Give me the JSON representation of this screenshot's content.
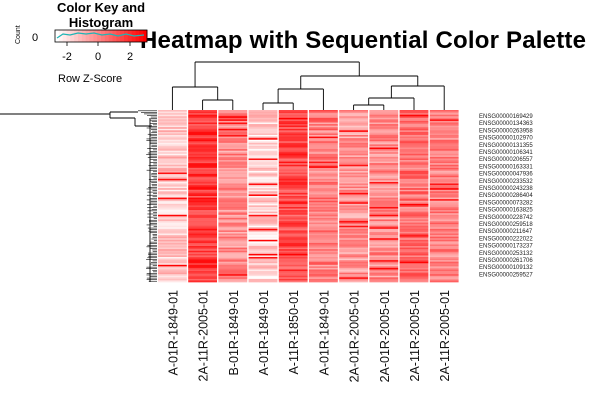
{
  "chart_data": {
    "type": "heatmap",
    "title": "Heatmap with Sequential Color Palette",
    "color_low": "#ffffff",
    "color_high": "#ff0000",
    "color_key": {
      "title": "Color Key and Histogram",
      "xlabel": "Row Z-Score",
      "ylabel": "Count",
      "y_tick": "0",
      "x_ticks": [
        "-2",
        "0",
        "2"
      ],
      "range": [
        -3,
        3
      ]
    },
    "columns": [
      "A-01R-1849-01",
      "2A-11R-2005-01",
      "B-01R-1849-01",
      "A-01R-1849-01",
      "A-11R-1850-01",
      "A-01R-1849-01",
      "2A-01R-2005-01",
      "2A-01R-2005-01",
      "2A-11R-2005-01",
      "2A-11R-2005-01"
    ],
    "row_labels": [
      "ENSG00000169429",
      "ENSG00000134363",
      "ENSG00000263958",
      "ENSG00000102970",
      "ENSG00000131355",
      "ENSG00000106341",
      "ENSG00000206557",
      "ENSG00000163331",
      "ENSG00000047936",
      "ENSG00000233532",
      "ENSG00000243238",
      "ENSG00000286404",
      "ENSG00000073282",
      "ENSG00000163825",
      "ENSG00000228742",
      "ENSG00000259518",
      "ENSG00000211647",
      "ENSG00000222022",
      "ENSG00000173237",
      "ENSG00000253132",
      "ENSG00000261706",
      "ENSG00000109132",
      "ENSG00000259527"
    ],
    "column_base_intensity": [
      0.22,
      0.78,
      0.45,
      0.18,
      0.7,
      0.5,
      0.4,
      0.45,
      0.55,
      0.48
    ]
  }
}
